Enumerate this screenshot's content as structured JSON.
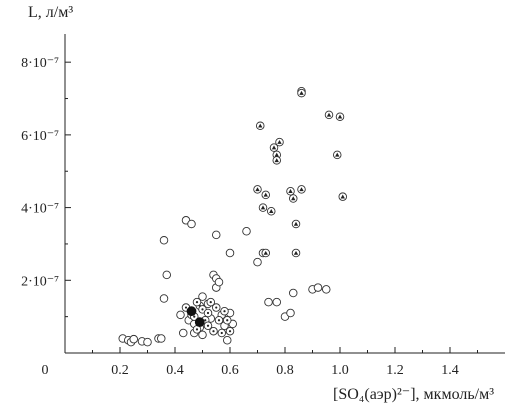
{
  "chart_data": {
    "type": "scatter",
    "ylabel": "L, л/м³",
    "xlabel": "[SO₄(аэр)²⁻], мкмоль/м³",
    "xlim": [
      0,
      1.6
    ],
    "ylim": [
      0,
      8.5e-07
    ],
    "x_ticks": [
      {
        "value": 0,
        "label": "0"
      },
      {
        "value": 0.2,
        "label": "0.2"
      },
      {
        "value": 0.4,
        "label": "0.4"
      },
      {
        "value": 0.6,
        "label": "0.6"
      },
      {
        "value": 0.8,
        "label": "0.8"
      },
      {
        "value": 1.0,
        "label": "1.0"
      },
      {
        "value": 1.2,
        "label": "1.2"
      },
      {
        "value": 1.4,
        "label": "1.4"
      }
    ],
    "y_ticks": [
      {
        "value": 2e-07,
        "label": "2·10⁻⁷"
      },
      {
        "value": 4e-07,
        "label": "4·10⁻⁷"
      },
      {
        "value": 6e-07,
        "label": "6·10⁻⁷"
      },
      {
        "value": 8e-07,
        "label": "8·10⁻⁷"
      }
    ],
    "grid": false,
    "series": [
      {
        "marker": "open-circle",
        "points": [
          [
            0.21,
            4e-08
          ],
          [
            0.23,
            3.5e-08
          ],
          [
            0.24,
            3e-08
          ],
          [
            0.25,
            3.8e-08
          ],
          [
            0.28,
            3.2e-08
          ],
          [
            0.3,
            3e-08
          ],
          [
            0.34,
            4e-08
          ],
          [
            0.35,
            4e-08
          ],
          [
            0.36,
            3.1e-07
          ],
          [
            0.37,
            2.15e-07
          ],
          [
            0.36,
            1.5e-07
          ],
          [
            0.43,
            5.5e-08
          ],
          [
            0.44,
            3.65e-07
          ],
          [
            0.46,
            3.55e-07
          ],
          [
            0.42,
            1.05e-07
          ],
          [
            0.45,
            9e-08
          ],
          [
            0.47,
            5.5e-08
          ],
          [
            0.49,
            7e-08
          ],
          [
            0.5,
            1.55e-07
          ],
          [
            0.52,
            1.35e-07
          ],
          [
            0.53,
            9.5e-08
          ],
          [
            0.54,
            2.15e-07
          ],
          [
            0.55,
            2.05e-07
          ],
          [
            0.55,
            1.8e-07
          ],
          [
            0.56,
            1.95e-07
          ],
          [
            0.55,
            3.25e-07
          ],
          [
            0.57,
            1.05e-07
          ],
          [
            0.58,
            7.5e-08
          ],
          [
            0.59,
            3.5e-08
          ],
          [
            0.6,
            2.75e-07
          ],
          [
            0.61,
            8e-08
          ],
          [
            0.6,
            1.1e-07
          ],
          [
            0.66,
            3.35e-07
          ],
          [
            0.7,
            2.5e-07
          ],
          [
            0.72,
            2.75e-07
          ],
          [
            0.74,
            1.4e-07
          ],
          [
            0.77,
            1.4e-07
          ],
          [
            0.8,
            1e-07
          ],
          [
            0.82,
            1.1e-07
          ],
          [
            0.83,
            1.65e-07
          ],
          [
            0.9,
            1.75e-07
          ],
          [
            0.92,
            1.8e-07
          ],
          [
            0.95,
            1.75e-07
          ],
          [
            0.5,
            5e-08
          ],
          [
            0.47,
            8e-08
          ]
        ]
      },
      {
        "marker": "dotted-circle",
        "points": [
          [
            0.44,
            1.25e-07
          ],
          [
            0.46,
            1.05e-07
          ],
          [
            0.47,
            1e-07
          ],
          [
            0.48,
            6.5e-08
          ],
          [
            0.49,
            1.3e-07
          ],
          [
            0.5,
            1.2e-07
          ],
          [
            0.51,
            9e-08
          ],
          [
            0.52,
            7.5e-08
          ],
          [
            0.53,
            1.4e-07
          ],
          [
            0.54,
            6e-08
          ],
          [
            0.55,
            1.25e-07
          ],
          [
            0.56,
            9e-08
          ],
          [
            0.57,
            5.5e-08
          ],
          [
            0.58,
            1.15e-07
          ],
          [
            0.59,
            9e-08
          ],
          [
            0.6,
            6e-08
          ],
          [
            0.52,
            1.1e-07
          ],
          [
            0.48,
            1.4e-07
          ]
        ]
      },
      {
        "marker": "filled-circle",
        "points": [
          [
            0.46,
            1.15e-07
          ],
          [
            0.49,
            8.5e-08
          ]
        ]
      },
      {
        "marker": "triangle-circle",
        "points": [
          [
            0.71,
            6.25e-07
          ],
          [
            0.76,
            5.65e-07
          ],
          [
            0.78,
            5.8e-07
          ],
          [
            0.77,
            5.45e-07
          ],
          [
            0.77,
            5.3e-07
          ],
          [
            0.7,
            4.5e-07
          ],
          [
            0.73,
            4.35e-07
          ],
          [
            0.72,
            4e-07
          ],
          [
            0.75,
            3.9e-07
          ],
          [
            0.82,
            4.45e-07
          ],
          [
            0.83,
            4.25e-07
          ],
          [
            0.86,
            4.5e-07
          ],
          [
            0.84,
            3.55e-07
          ],
          [
            0.73,
            2.75e-07
          ],
          [
            0.84,
            2.75e-07
          ],
          [
            0.86,
            7.2e-07
          ],
          [
            0.86,
            7.15e-07
          ],
          [
            0.96,
            6.55e-07
          ],
          [
            1.0,
            6.5e-07
          ],
          [
            0.99,
            5.45e-07
          ],
          [
            1.01,
            4.3e-07
          ]
        ]
      }
    ]
  }
}
